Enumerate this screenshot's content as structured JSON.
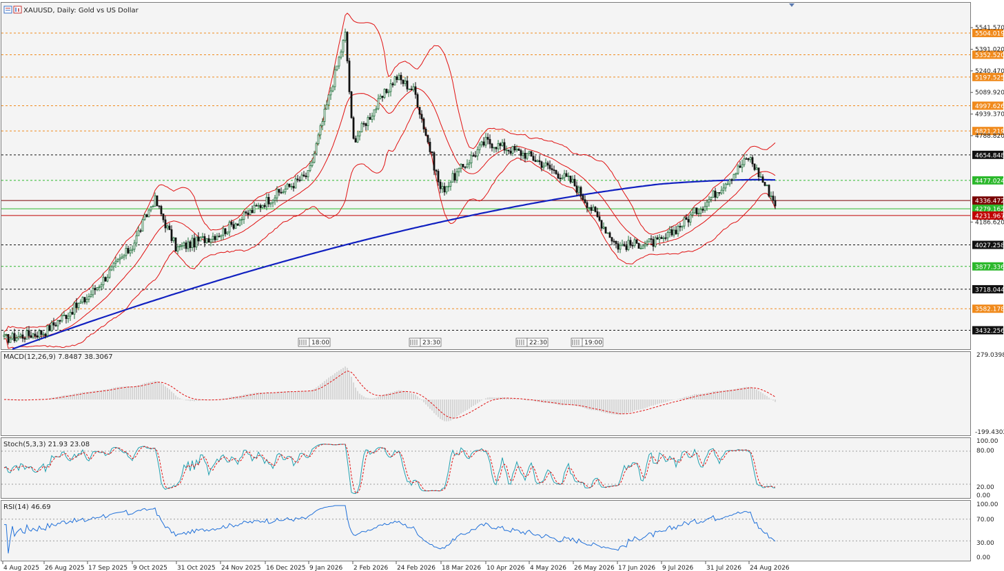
{
  "header": {
    "symbol_title": "XAUUSD, Daily:  Gold vs US Dollar"
  },
  "colors": {
    "background": "#f4f4f4",
    "bull_candle": "#1f6f3a",
    "bear_candle": "#111111",
    "bollinger": "#e01010",
    "ma_long": "#1020c0",
    "macd_hist": "#b8b8b8",
    "macd_signal": "#e01010",
    "stoch_main": "#20a0b0",
    "stoch_signal": "#e01010",
    "rsi": "#1e6fd9",
    "level_orange": "#f08a1c",
    "level_green": "#2cb82c",
    "level_black": "#111111",
    "level_red": "#c00000"
  },
  "price_scale": {
    "ticks": [
      "5541.570",
      "5391.020",
      "5240.470",
      "5089.920",
      "4939.370",
      "4788.820",
      "4186.620"
    ],
    "range": [
      3300,
      5720
    ]
  },
  "levels": [
    {
      "value": 5504.019,
      "label": "5504.019",
      "color": "orange",
      "style": "dashed"
    },
    {
      "value": 5352.52,
      "label": "5352.520",
      "color": "orange",
      "style": "dashed"
    },
    {
      "value": 5197.525,
      "label": "5197.525",
      "color": "orange",
      "style": "dashed"
    },
    {
      "value": 4997.626,
      "label": "4997.626",
      "color": "orange",
      "style": "dashed"
    },
    {
      "value": 4821.219,
      "label": "4821.219",
      "color": "orange",
      "style": "dashed"
    },
    {
      "value": 4654.848,
      "label": "4654.848",
      "color": "black",
      "style": "dashed"
    },
    {
      "value": 4477.024,
      "label": "4477.024",
      "color": "green",
      "style": "dashed"
    },
    {
      "value": 4336.472,
      "label": "4336.472",
      "color": "darkred",
      "style": "solid"
    },
    {
      "value": 4279.162,
      "label": "4279.162",
      "color": "green",
      "style": "solid"
    },
    {
      "value": 4231.967,
      "label": "4231.967",
      "color": "red",
      "style": "solid"
    },
    {
      "value": 4027.258,
      "label": "4027.258",
      "color": "black",
      "style": "dashed"
    },
    {
      "value": 3877.336,
      "label": "3877.336",
      "color": "green",
      "style": "dashed"
    },
    {
      "value": 3718.044,
      "label": "3718.044",
      "color": "black",
      "style": "dashed"
    },
    {
      "value": 3582.178,
      "label": "3582.178",
      "color": "orange",
      "style": "dashed"
    },
    {
      "value": 3432.256,
      "label": "3432.256",
      "color": "black",
      "style": "dashed"
    }
  ],
  "event_markers": [
    "18:00",
    "23:30",
    "22:30",
    "19:00"
  ],
  "indicators": {
    "macd": {
      "label": "MACD(12,26,9) 7.8487 38.3067",
      "max": "279.0398",
      "min": "-199.4302"
    },
    "stoch": {
      "label": "Stoch(5,3,3) 21.93 23.08",
      "ticks": [
        "100.00",
        "80.00",
        "20.00",
        "0.00"
      ]
    },
    "rsi": {
      "label": "RSI(14) 46.69",
      "ticks": [
        "100.00",
        "70.00",
        "30.00",
        "0.00"
      ]
    }
  },
  "time_axis": {
    "labels": [
      "4 Aug 2025",
      "26 Aug 2025",
      "17 Sep 2025",
      "9 Oct 2025",
      "31 Oct 2025",
      "24 Nov 2025",
      "16 Dec 2025",
      "9 Jan 2026",
      "2 Feb 2026",
      "24 Feb 2026",
      "18 Mar 2026",
      "10 Apr 2026",
      "4 May 2026",
      "26 May 2026",
      "17 Jun 2026",
      "9 Jul 2026",
      "31 Jul 2026",
      "24 Aug 2026"
    ]
  },
  "chart_data": {
    "type": "candlestick",
    "timeframe": "Daily",
    "symbol": "XAUUSD",
    "price_anchors": [
      [
        "4 Aug 2025",
        3370
      ],
      [
        "26 Aug 2025",
        3420
      ],
      [
        "17 Sep 2025",
        3660
      ],
      [
        "9 Oct 2025",
        4020
      ],
      [
        "20 Oct 2025",
        4350
      ],
      [
        "31 Oct 2025",
        4000
      ],
      [
        "24 Nov 2025",
        4110
      ],
      [
        "16 Dec 2025",
        4330
      ],
      [
        "9 Jan 2026",
        4520
      ],
      [
        "29 Jan 2026",
        5500
      ],
      [
        "2 Feb 2026",
        4750
      ],
      [
        "24 Feb 2026",
        5200
      ],
      [
        "5 Mar 2026",
        5100
      ],
      [
        "18 Mar 2026",
        4400
      ],
      [
        "10 Apr 2026",
        4750
      ],
      [
        "4 May 2026",
        4650
      ],
      [
        "26 May 2026",
        4460
      ],
      [
        "17 Jun 2026",
        4020
      ],
      [
        "9 Jul 2026",
        4050
      ],
      [
        "31 Jul 2026",
        4320
      ],
      [
        "24 Aug 2026",
        4640
      ],
      [
        "8 Sep 2026",
        4310
      ]
    ],
    "current": {
      "macd": 7.8487,
      "macd_signal": 38.3067,
      "stoch_k": 21.93,
      "stoch_d": 23.08,
      "rsi": 46.69
    }
  }
}
